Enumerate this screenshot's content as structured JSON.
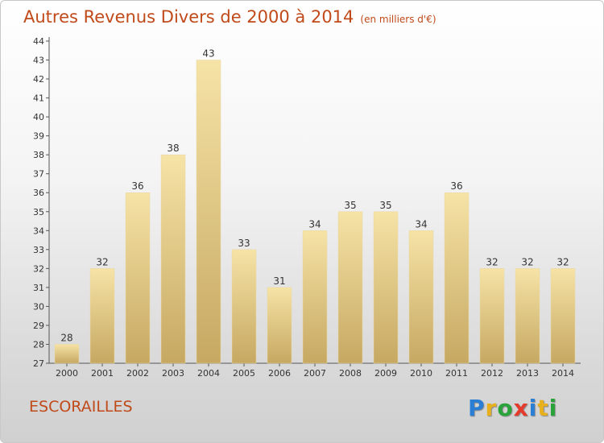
{
  "title": "Autres Revenus Divers de 2000 à 2014",
  "subtitle": "(en milliers d'€)",
  "commune": "ESCORAILLES",
  "logo_text": "Proxiti",
  "colors": {
    "title": "#c04a1a",
    "bar_top": "#f4dfa0",
    "bar_bottom": "#c8aa64"
  },
  "chart_data": {
    "type": "bar",
    "categories": [
      "2000",
      "2001",
      "2002",
      "2003",
      "2004",
      "2005",
      "2006",
      "2007",
      "2008",
      "2009",
      "2010",
      "2011",
      "2012",
      "2013",
      "2014"
    ],
    "values": [
      28,
      32,
      36,
      38,
      43,
      33,
      31,
      34,
      35,
      35,
      34,
      36,
      32,
      32,
      32
    ],
    "ylim": [
      27,
      44
    ],
    "yticks": [
      27,
      28,
      29,
      30,
      31,
      32,
      33,
      34,
      35,
      36,
      37,
      38,
      39,
      40,
      41,
      42,
      43,
      44
    ],
    "grid": false,
    "xlabel": "",
    "ylabel": ""
  }
}
